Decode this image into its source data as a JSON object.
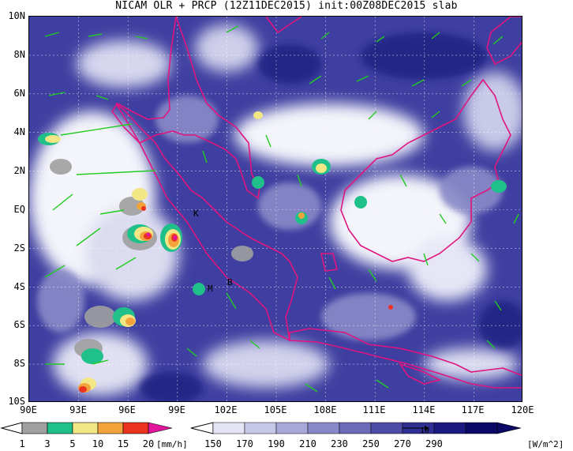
{
  "title": "NICAM OLR + PRCP (12Z11DEC2015) init:00Z08DEC2015 slab",
  "lat_labels": [
    "10N",
    "8N",
    "6N",
    "4N",
    "2N",
    "EQ",
    "2S",
    "4S",
    "6S",
    "8S",
    "10S"
  ],
  "lon_labels": [
    "90E",
    "93E",
    "96E",
    "99E",
    "102E",
    "105E",
    "108E",
    "111E",
    "114E",
    "117E",
    "120E"
  ],
  "map_markers": [
    {
      "label": "K",
      "name": "marker-k"
    },
    {
      "label": "B",
      "name": "marker-b"
    },
    {
      "label": "M",
      "name": "marker-m"
    }
  ],
  "precip_colorbar": {
    "labels": [
      "1",
      "3",
      "5",
      "10",
      "15",
      "20"
    ],
    "colors": [
      "#a0a0a0",
      "#1fc08a",
      "#f3e684",
      "#f3a33c",
      "#ec3320",
      "#e0159b"
    ],
    "unit": "[mm/h]"
  },
  "olr_colorbar": {
    "labels": [
      "150",
      "170",
      "190",
      "210",
      "230",
      "250",
      "270",
      "290"
    ],
    "colors": [
      "#ffffff",
      "#e4e4f4",
      "#c8c8e8",
      "#a8a8d8",
      "#8888c8",
      "#6a6ab8",
      "#4c4ca6",
      "#303094",
      "#1a1a80",
      "#0a0a66"
    ],
    "unit": "[W/m^2]"
  },
  "vector_reference_label": "10"
}
